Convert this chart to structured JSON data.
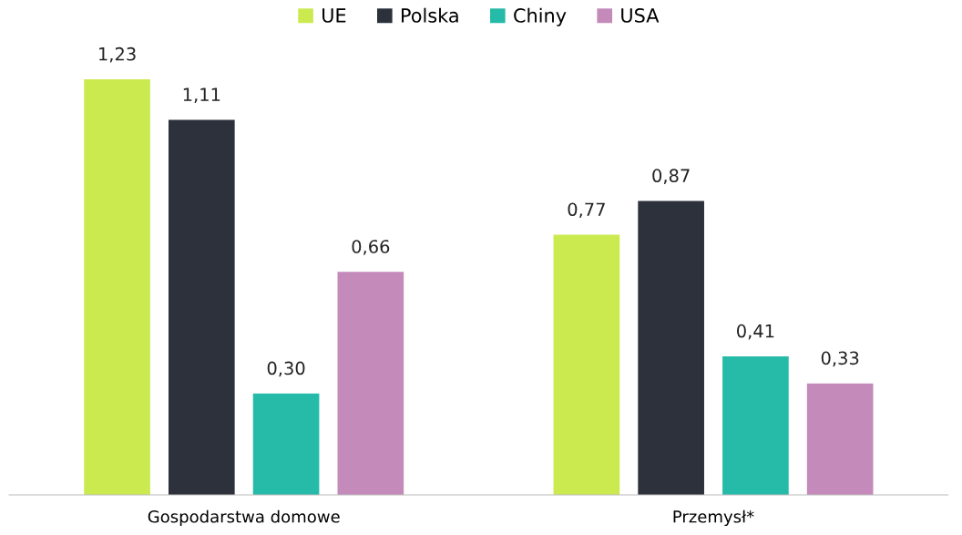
{
  "chart_data": {
    "type": "bar",
    "categories": [
      "Gospodarstwa domowe",
      "Przemysł*"
    ],
    "series": [
      {
        "name": "UE",
        "color": "#cbea50",
        "values": [
          1.23,
          0.77
        ],
        "value_labels": [
          "1,23",
          "0,77"
        ]
      },
      {
        "name": "Polska",
        "color": "#2d313b",
        "values": [
          1.11,
          0.87
        ],
        "value_labels": [
          "1,11",
          "0,87"
        ]
      },
      {
        "name": "Chiny",
        "color": "#26bba8",
        "values": [
          0.3,
          0.41
        ],
        "value_labels": [
          "0,30",
          "0,41"
        ]
      },
      {
        "name": "USA",
        "color": "#c48ab9",
        "values": [
          0.66,
          0.33
        ],
        "value_labels": [
          "0,66",
          "0,33"
        ]
      }
    ],
    "legend": "top",
    "grid": false
  }
}
